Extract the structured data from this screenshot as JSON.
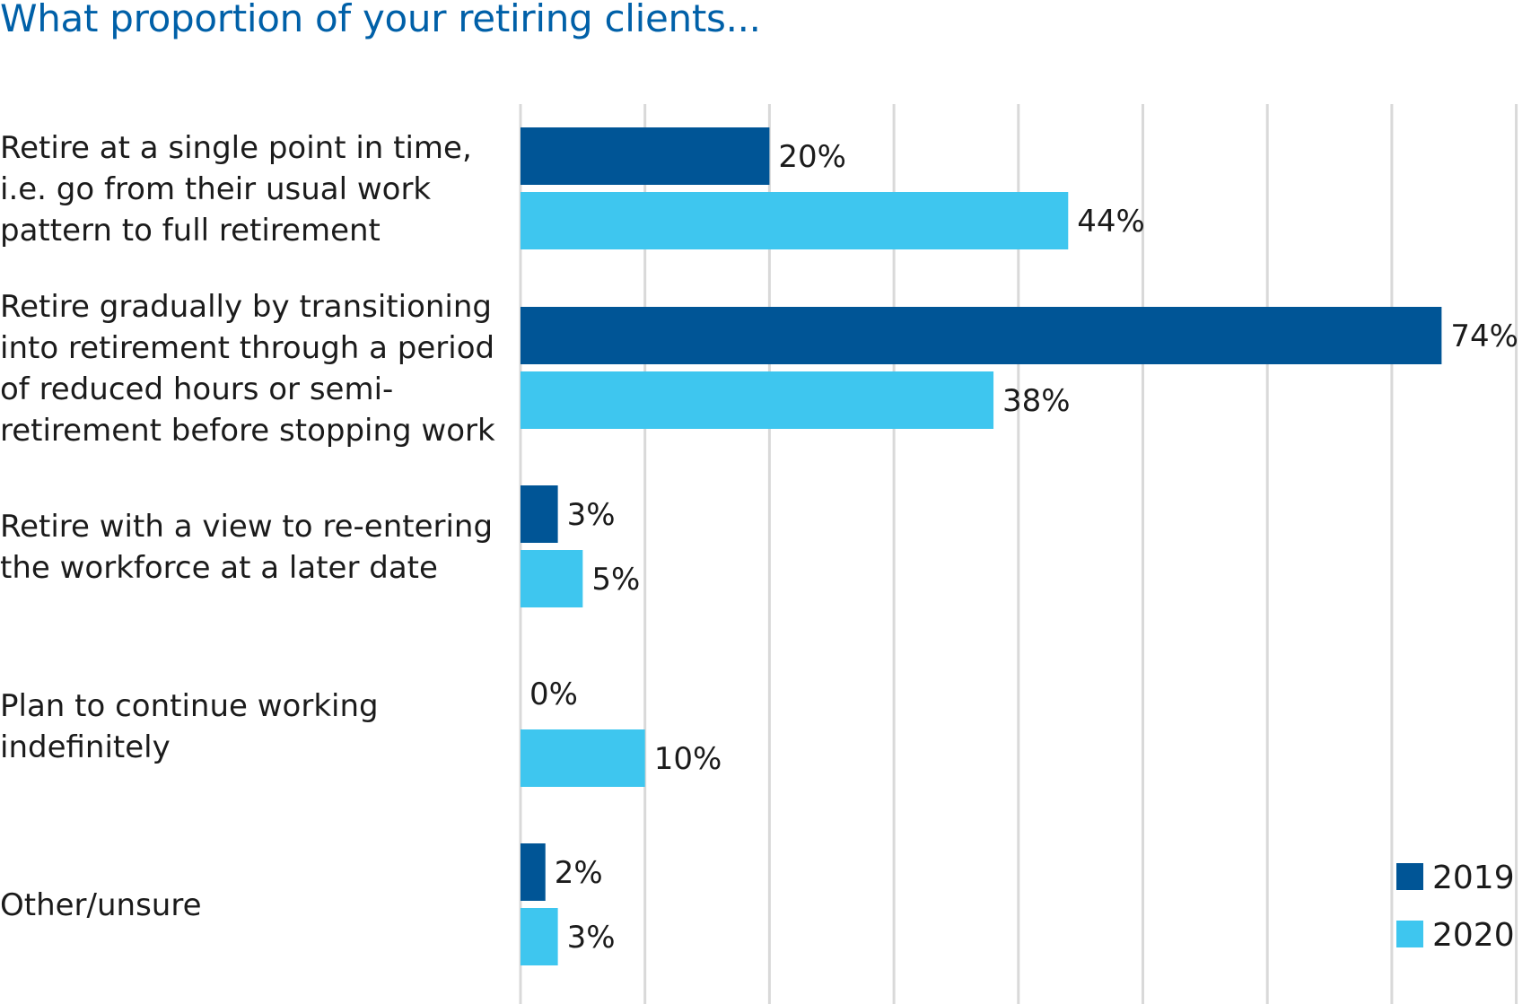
{
  "chart_data": {
    "type": "bar",
    "orientation": "horizontal",
    "title": "What proportion of your retiring clients...",
    "categories": [
      [
        "Retire at a single point in time,",
        "i.e. go from their usual work",
        "pattern to full retirement"
      ],
      [
        "Retire gradually by transitioning",
        "into retirement through a period",
        "of reduced hours or semi-",
        "retirement before stopping work"
      ],
      [
        "Retire with a view to re-entering",
        "the workforce at a later date"
      ],
      [
        "Plan to continue working",
        "indefinitely"
      ],
      [
        "Other/unsure"
      ]
    ],
    "series": [
      {
        "name": "2019",
        "color": "#005596",
        "values": [
          20,
          74,
          3,
          0,
          2
        ],
        "labels": [
          "20%",
          "74%",
          "3%",
          "0%",
          "2%"
        ]
      },
      {
        "name": "2020",
        "color": "#3ec6ef",
        "values": [
          44,
          38,
          5,
          10,
          3
        ],
        "labels": [
          "44%",
          "38%",
          "5%",
          "10%",
          "3%"
        ]
      }
    ],
    "xlim": [
      0,
      80
    ],
    "grid": true,
    "gridline_step": 10,
    "legend_position": "bottom-right"
  }
}
